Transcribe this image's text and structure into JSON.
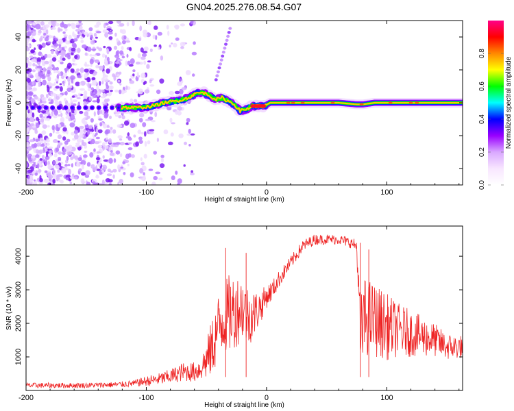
{
  "title": "GN04.2025.276.08.54.G07",
  "colors": {
    "snr_line": "#ee2222",
    "axis": "#000000",
    "background": "#ffffff"
  },
  "chart_data": [
    {
      "type": "heatmap",
      "name": "spectrogram",
      "xlabel": "Height of straight line (km)",
      "ylabel": "Frequency (Hz)",
      "xlim": [
        -200,
        163
      ],
      "ylim": [
        -50,
        50
      ],
      "xticks": [
        -200,
        -100,
        0,
        100
      ],
      "xtick_labels": [
        "-200",
        "-100",
        "0",
        "100"
      ],
      "yticks": [
        -40,
        -20,
        0,
        20,
        40
      ],
      "ytick_labels": [
        "-40",
        "-20",
        "0",
        "20",
        "40"
      ],
      "ridge_frequency_track": {
        "x": [
          -200,
          -160,
          -125,
          -115,
          -105,
          -95,
          -85,
          -75,
          -65,
          -58,
          -52,
          -47,
          -42,
          -37,
          -32,
          -27,
          -22,
          -17,
          -12,
          -7,
          -2,
          3,
          20,
          40,
          60,
          75,
          80,
          90,
          100,
          120,
          140,
          163
        ],
        "y": [
          -3,
          -3,
          -3,
          -3,
          -3,
          -2,
          0,
          1,
          3,
          6,
          6,
          4,
          2,
          3,
          1,
          -1,
          -5,
          -4,
          -2,
          -2,
          -2,
          0,
          0,
          0,
          0,
          -1,
          -1,
          0,
          0,
          0,
          0,
          0
        ]
      },
      "colorbar": {
        "label": "Normalized spectral amplitude",
        "range": [
          0,
          1
        ],
        "ticks": [
          0.0,
          0.2,
          0.4,
          0.6,
          0.8
        ],
        "tick_labels": [
          "0.0",
          "0.2",
          "0.4",
          "0.6",
          "0.8"
        ],
        "colormap": [
          "#ffffff",
          "#f8e6ff",
          "#d9a8ff",
          "#9900ff",
          "#0000ff",
          "#00ffff",
          "#00ff00",
          "#ffff00",
          "#ff8800",
          "#ff0000",
          "#ff0088"
        ]
      }
    },
    {
      "type": "line",
      "name": "snr",
      "xlabel": "Height of straight line (km)",
      "ylabel": "SNR (10 * v/v)",
      "xlim": [
        -200,
        163
      ],
      "ylim": [
        0,
        4900
      ],
      "xticks": [
        -200,
        -100,
        0,
        100
      ],
      "xtick_labels": [
        "-200",
        "-100",
        "0",
        "100"
      ],
      "yticks": [
        1000,
        2000,
        3000,
        4000
      ],
      "ytick_labels": [
        "1000",
        "2000",
        "3000",
        "4000"
      ],
      "series": [
        {
          "name": "SNR",
          "x": [
            -200,
            -180,
            -160,
            -140,
            -120,
            -110,
            -100,
            -90,
            -80,
            -70,
            -60,
            -55,
            -50,
            -45,
            -40,
            -35,
            -30,
            -25,
            -20,
            -15,
            -10,
            -5,
            0,
            5,
            10,
            20,
            30,
            40,
            50,
            60,
            70,
            75,
            78,
            82,
            90,
            100,
            110,
            120,
            130,
            140,
            150,
            163
          ],
          "y": [
            150,
            150,
            150,
            160,
            180,
            210,
            280,
            330,
            420,
            550,
            550,
            650,
            900,
            1300,
            1900,
            2200,
            2300,
            2400,
            2500,
            2200,
            2300,
            2500,
            2800,
            3000,
            3300,
            3800,
            4300,
            4500,
            4500,
            4500,
            4400,
            4300,
            1500,
            2200,
            2100,
            1900,
            1800,
            1700,
            1600,
            1500,
            1300,
            1300
          ],
          "amplitude": [
            80,
            80,
            80,
            80,
            90,
            100,
            150,
            180,
            220,
            280,
            300,
            350,
            600,
            900,
            1000,
            1100,
            1200,
            1100,
            1000,
            900,
            700,
            500,
            350,
            300,
            250,
            200,
            180,
            160,
            150,
            150,
            160,
            200,
            1300,
            1200,
            1100,
            1000,
            800,
            700,
            600,
            500,
            400,
            350
          ],
          "spikes": [
            {
              "x": -34,
              "y": 4250
            },
            {
              "x": -17,
              "y": 4100
            },
            {
              "x": 78,
              "y": 4400
            },
            {
              "x": 85,
              "y": 4200
            }
          ]
        }
      ]
    }
  ]
}
